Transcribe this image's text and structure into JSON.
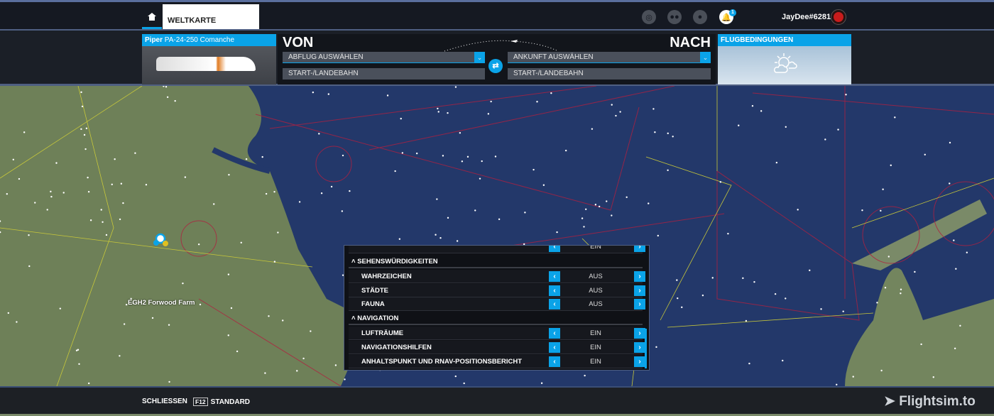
{
  "topbar": {
    "home_icon": "home-icon",
    "tab": "WELTKARTE",
    "icons": [
      "activity-icon",
      "friends-icon",
      "profile-icon",
      "bell-icon"
    ],
    "notification_count": "1",
    "username": "JayDee#6281"
  },
  "aircraft": {
    "brand": "Piper",
    "model": "PA-24-250 Comanche"
  },
  "route": {
    "from_title": "VON",
    "to_title": "NACH",
    "departure": "ABFLUG AUSWÄHLEN",
    "arrival": "ANKUNFT AUSWÄHLEN",
    "departure_runway": "START-/LANDEBAHN",
    "arrival_runway": "START-/LANDEBAHN"
  },
  "weather": {
    "title": "FLUGBEDINGUNGEN",
    "icon": "partly-cloudy-icon"
  },
  "map": {
    "airport_label": "EGH2 Forwood Farm"
  },
  "panel": {
    "sections": [
      {
        "title": "SEHENSWÜRDIGKEITEN",
        "items": [
          {
            "label": "WAHRZEICHEN",
            "value": "AUS"
          },
          {
            "label": "STÄDTE",
            "value": "AUS"
          },
          {
            "label": "FAUNA",
            "value": "AUS"
          }
        ]
      },
      {
        "title": "NAVIGATION",
        "items": [
          {
            "label": "LUFTRÄUME",
            "value": "EIN"
          },
          {
            "label": "NAVIGATIONSHILFEN",
            "value": "EIN"
          },
          {
            "label": "ANHALTSPUNKT UND RNAV-POSITIONSBERICHT",
            "value": "EIN"
          }
        ]
      }
    ],
    "partial_value": "EIN"
  },
  "bottom": {
    "close": "SCHLIESSEN",
    "key": "F12",
    "default": "STANDARD",
    "brand": "Flightsim.to"
  },
  "colors": {
    "accent": "#0aa3e8",
    "sea": "#23386a",
    "land": "#6e8058"
  }
}
